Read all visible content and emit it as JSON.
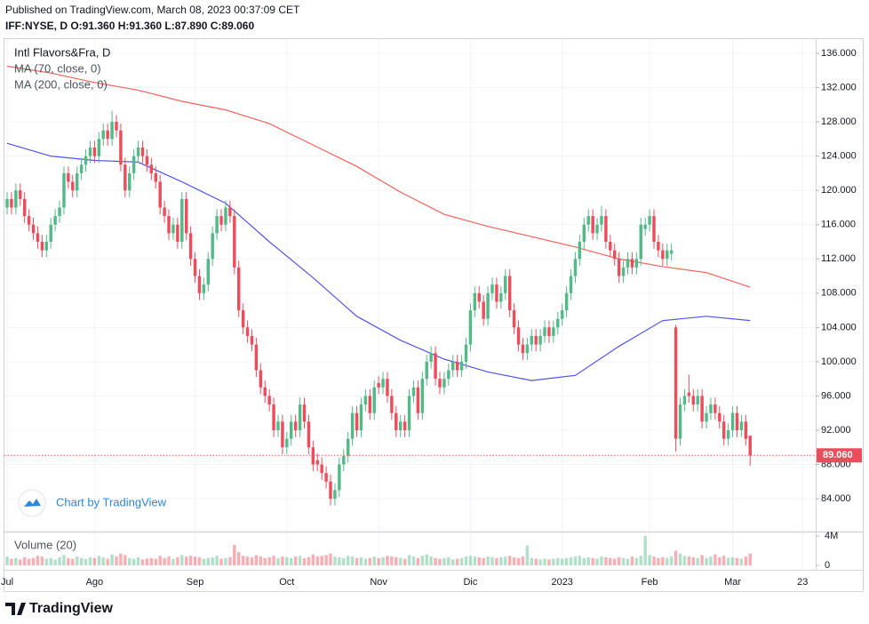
{
  "header": {
    "published": "Published on TradingView.com, March 08, 2023 00:37:09 CET",
    "quote": "IFF:NYSE, D O:91.360 H:91.360 L:87.890 C:89.060"
  },
  "watermark": "Chart by TradingView",
  "footer": {
    "brand": "TradingView"
  },
  "chart_data": {
    "type": "candlestick",
    "title": "Intl Flavors&Fra, D",
    "up_color": "#53b987",
    "down_color": "#eb4d5c",
    "xlim": [
      -1.63,
      185
    ],
    "xticks": [
      {
        "value": 0,
        "label": "Jul"
      },
      {
        "value": 20,
        "label": "Ago"
      },
      {
        "value": 43,
        "label": "Sep"
      },
      {
        "value": 64,
        "label": "Oct"
      },
      {
        "value": 85,
        "label": "Nov"
      },
      {
        "value": 106,
        "label": "Dic"
      },
      {
        "value": 127,
        "label": "2023"
      },
      {
        "value": 147,
        "label": "Feb"
      },
      {
        "value": 166,
        "label": "Mar"
      },
      {
        "value": 182,
        "label": "23"
      }
    ],
    "ylim": [
      80.27,
      137.56
    ],
    "yticks": [
      {
        "value": 84,
        "label": "84.000"
      },
      {
        "value": 88,
        "label": "88.000"
      },
      {
        "value": 92,
        "label": "92.000"
      },
      {
        "value": 96,
        "label": "96.000"
      },
      {
        "value": 100,
        "label": "100.000"
      },
      {
        "value": 104,
        "label": "104.000"
      },
      {
        "value": 108,
        "label": "108.000"
      },
      {
        "value": 112,
        "label": "112.000"
      },
      {
        "value": 116,
        "label": "116.000"
      },
      {
        "value": 120,
        "label": "120.000"
      },
      {
        "value": 124,
        "label": "124.000"
      },
      {
        "value": 128,
        "label": "128.000"
      },
      {
        "value": 132,
        "label": "132.000"
      },
      {
        "value": 136,
        "label": "136.000"
      }
    ],
    "grid": true,
    "last_price": {
      "value": 89.06,
      "label": "89.060",
      "color": "#eb4d5c"
    },
    "ohlc": [
      [
        118,
        119.8,
        117.2,
        119
      ],
      [
        119,
        119.8,
        117.2,
        118
      ],
      [
        118,
        120.8,
        117.2,
        120
      ],
      [
        120,
        120.8,
        118.2,
        119
      ],
      [
        119,
        119.8,
        116.2,
        117
      ],
      [
        117,
        117.8,
        115.2,
        116
      ],
      [
        116,
        116.8,
        114.2,
        115
      ],
      [
        115,
        115.8,
        113.2,
        114
      ],
      [
        114,
        114.8,
        112.2,
        113
      ],
      [
        113,
        114.8,
        112.2,
        114
      ],
      [
        114,
        116.8,
        113.2,
        116
      ],
      [
        116,
        117.8,
        115.2,
        117
      ],
      [
        117,
        118.8,
        116.2,
        118
      ],
      [
        118,
        122.8,
        117.2,
        122
      ],
      [
        122,
        122.8,
        120.2,
        121
      ],
      [
        121,
        121.8,
        119.2,
        120
      ],
      [
        120,
        122.8,
        119.2,
        122
      ],
      [
        122,
        123.8,
        121.2,
        123
      ],
      [
        123,
        124.8,
        122.2,
        124
      ],
      [
        124,
        125.8,
        123.2,
        125
      ],
      [
        125,
        125.8,
        123.2,
        124
      ],
      [
        124,
        126.8,
        123.2,
        126
      ],
      [
        126,
        127.8,
        125.2,
        127
      ],
      [
        127,
        127.8,
        125.2,
        126
      ],
      [
        126,
        129.3,
        125.2,
        128
      ],
      [
        128,
        128.8,
        126.2,
        127
      ],
      [
        127,
        127.8,
        122.2,
        123
      ],
      [
        123,
        123.8,
        119.2,
        120
      ],
      [
        120,
        122.8,
        119.2,
        122
      ],
      [
        122,
        124.8,
        121.2,
        124
      ],
      [
        124,
        125.8,
        123.2,
        125
      ],
      [
        125,
        125.8,
        123.2,
        124
      ],
      [
        124,
        124.8,
        122.2,
        123
      ],
      [
        123,
        123.8,
        121.2,
        122
      ],
      [
        122,
        122.8,
        120.2,
        121
      ],
      [
        121,
        121.8,
        117.2,
        118
      ],
      [
        118,
        118.8,
        116.2,
        117
      ],
      [
        117,
        117.8,
        114.2,
        115
      ],
      [
        115,
        116.8,
        114.2,
        116
      ],
      [
        116,
        116.8,
        113.2,
        114
      ],
      [
        114,
        119.8,
        113.2,
        119
      ],
      [
        119,
        119.8,
        114.2,
        115
      ],
      [
        115,
        115.8,
        111.2,
        112
      ],
      [
        112,
        112.8,
        109.2,
        110
      ],
      [
        110,
        110.8,
        107.2,
        108
      ],
      [
        108,
        109.8,
        107.2,
        109
      ],
      [
        109,
        112.8,
        108.2,
        112
      ],
      [
        112,
        115.8,
        111.2,
        115
      ],
      [
        115,
        117.8,
        114.2,
        117
      ],
      [
        117,
        117.8,
        115.2,
        116
      ],
      [
        116,
        118.8,
        115.2,
        118
      ],
      [
        118,
        118.8,
        116.2,
        117
      ],
      [
        117,
        117.8,
        110.2,
        111
      ],
      [
        111,
        111.8,
        105.2,
        106
      ],
      [
        106,
        106.8,
        103.2,
        104
      ],
      [
        104,
        104.8,
        102.2,
        103
      ],
      [
        103,
        103.8,
        101.2,
        102
      ],
      [
        102,
        102.8,
        98.2,
        99
      ],
      [
        99,
        99.8,
        96.2,
        97
      ],
      [
        97,
        97.8,
        95.2,
        96
      ],
      [
        96,
        96.8,
        94.2,
        95
      ],
      [
        95,
        95.8,
        91.2,
        92
      ],
      [
        92,
        93.8,
        91.2,
        93
      ],
      [
        93,
        93.8,
        89.2,
        90
      ],
      [
        90,
        91.8,
        89.2,
        91
      ],
      [
        91,
        93.8,
        90.2,
        93
      ],
      [
        93,
        93.8,
        91.2,
        92
      ],
      [
        92,
        95.8,
        91.2,
        95
      ],
      [
        95,
        95.8,
        92.2,
        93
      ],
      [
        93,
        93.8,
        89.2,
        90
      ],
      [
        90,
        90.8,
        87.2,
        88
      ],
      [
        88.5,
        89.3,
        87.2,
        88
      ],
      [
        88,
        88.8,
        86.2,
        87
      ],
      [
        87,
        87.8,
        85.2,
        86
      ],
      [
        86,
        86.8,
        83.2,
        84
      ],
      [
        84,
        85.8,
        83.2,
        85
      ],
      [
        85,
        88.8,
        84.2,
        88
      ],
      [
        88,
        89.8,
        87.2,
        89
      ],
      [
        89,
        91.8,
        88.2,
        91
      ],
      [
        91,
        94.8,
        90.2,
        94
      ],
      [
        94,
        94.8,
        91.2,
        92
      ],
      [
        92,
        95.8,
        91.2,
        95
      ],
      [
        95,
        96.8,
        94.2,
        96
      ],
      [
        96,
        96.8,
        93.2,
        94
      ],
      [
        94,
        97.8,
        93.2,
        97
      ],
      [
        97.5,
        98.3,
        96.2,
        97
      ],
      [
        97,
        98.8,
        96.2,
        98
      ],
      [
        98,
        98.8,
        95.2,
        96
      ],
      [
        96,
        96.8,
        93.2,
        94
      ],
      [
        94,
        94.8,
        91.2,
        92
      ],
      [
        92,
        93.8,
        91.2,
        93
      ],
      [
        93,
        93.8,
        91.2,
        92
      ],
      [
        92,
        96.8,
        91.2,
        96
      ],
      [
        96,
        97.8,
        95.2,
        97
      ],
      [
        97,
        97.8,
        93.2,
        94
      ],
      [
        94,
        98.8,
        93.2,
        98
      ],
      [
        98,
        100.8,
        97.2,
        100
      ],
      [
        100,
        101.8,
        99.2,
        101
      ],
      [
        101,
        101.8,
        97.2,
        98
      ],
      [
        98,
        98.8,
        96.2,
        97
      ],
      [
        97,
        98.8,
        96.2,
        98
      ],
      [
        98,
        99.8,
        97.2,
        99
      ],
      [
        99,
        100.8,
        98.2,
        100
      ],
      [
        100,
        100.8,
        98.2,
        99
      ],
      [
        99,
        100.8,
        98.2,
        100
      ],
      [
        100,
        102.8,
        99.2,
        102
      ],
      [
        102,
        106.8,
        101.2,
        106
      ],
      [
        106,
        108.8,
        105.2,
        108
      ],
      [
        108,
        108.8,
        106.2,
        107
      ],
      [
        107,
        107.8,
        104.2,
        105
      ],
      [
        105,
        108.8,
        104.2,
        108
      ],
      [
        108,
        109.8,
        107.2,
        109
      ],
      [
        109,
        109.8,
        106.2,
        107
      ],
      [
        107,
        108.8,
        106.2,
        108
      ],
      [
        108,
        110.8,
        107.2,
        110
      ],
      [
        110,
        110.8,
        105.2,
        106
      ],
      [
        106,
        106.8,
        103.2,
        104
      ],
      [
        104,
        104.8,
        101.2,
        102
      ],
      [
        102,
        102.8,
        100.2,
        101
      ],
      [
        101,
        102.8,
        100.2,
        102
      ],
      [
        102,
        103.8,
        101.2,
        103
      ],
      [
        103,
        103.8,
        101.2,
        102
      ],
      [
        102,
        103.8,
        101.2,
        103
      ],
      [
        103,
        104.8,
        102.2,
        104
      ],
      [
        104,
        104.8,
        102.2,
        103
      ],
      [
        103,
        104.8,
        102.2,
        104
      ],
      [
        104,
        105.8,
        103.2,
        105
      ],
      [
        105,
        106.8,
        104.2,
        106
      ],
      [
        106,
        108.8,
        105.2,
        108
      ],
      [
        108,
        110.8,
        107.2,
        110
      ],
      [
        110,
        112.8,
        109.2,
        112
      ],
      [
        112,
        114.8,
        111.2,
        114
      ],
      [
        114,
        116.8,
        113.2,
        116
      ],
      [
        116,
        117.8,
        115.2,
        117
      ],
      [
        117,
        117.8,
        114.2,
        115
      ],
      [
        115,
        116.8,
        114.2,
        116
      ],
      [
        116,
        118.2,
        115.2,
        117
      ],
      [
        117,
        117.8,
        113.2,
        114
      ],
      [
        114,
        114.8,
        112.2,
        113
      ],
      [
        113,
        113.8,
        111.2,
        112
      ],
      [
        112,
        112.8,
        109.2,
        110
      ],
      [
        110,
        111.8,
        109.2,
        111
      ],
      [
        111,
        112.8,
        110.2,
        112
      ],
      [
        112,
        112.8,
        110.2,
        111
      ],
      [
        111,
        112.8,
        110.2,
        112
      ],
      [
        112,
        116.8,
        111.2,
        116
      ],
      [
        115.5,
        116.8,
        114.7,
        116
      ],
      [
        116,
        117.8,
        115.2,
        117
      ],
      [
        117,
        117.8,
        113.2,
        114
      ],
      [
        114,
        114.8,
        112.2,
        113
      ],
      [
        113,
        113.8,
        111.2,
        112
      ],
      [
        112,
        113.8,
        111.2,
        113
      ],
      [
        112.6,
        113.8,
        111.8,
        113
      ],
      [
        104,
        104.3,
        89.5,
        91
      ],
      [
        91,
        95.8,
        90.2,
        95
      ],
      [
        95,
        96.8,
        94.2,
        96
      ],
      [
        96.4,
        98.5,
        95.2,
        96
      ],
      [
        96,
        96.8,
        94.2,
        95
      ],
      [
        95,
        96.8,
        94.2,
        96
      ],
      [
        96,
        96.8,
        92.2,
        93
      ],
      [
        93,
        94.8,
        92.2,
        94
      ],
      [
        94,
        95.8,
        93.2,
        95
      ],
      [
        95,
        95.8,
        93.2,
        94
      ],
      [
        94,
        94.8,
        92.2,
        93
      ],
      [
        93,
        93.8,
        90.2,
        91
      ],
      [
        91,
        92.8,
        90.2,
        92
      ],
      [
        92,
        94.8,
        91.2,
        94
      ],
      [
        94,
        94.8,
        91.2,
        92
      ],
      [
        92,
        93.8,
        91.2,
        93
      ],
      [
        93,
        93.8,
        90.2,
        91
      ],
      [
        91.36,
        91.36,
        87.89,
        89.06
      ]
    ],
    "series": [
      {
        "name": "MA (70, close, 0)",
        "color": "#5056e8",
        "x": [
          0,
          10,
          20,
          30,
          40,
          50,
          60,
          70,
          80,
          90,
          100,
          110,
          120,
          130,
          140,
          150,
          160,
          170
        ],
        "values": [
          125.5,
          124.0,
          123.5,
          123.3,
          121.0,
          118.5,
          114.0,
          109.8,
          105.3,
          102.5,
          100.3,
          98.8,
          97.8,
          98.4,
          101.8,
          104.8,
          105.3,
          104.8
        ]
      },
      {
        "name": "MA (200, close, 0)",
        "color": "#f0625a",
        "x": [
          0,
          10,
          20,
          30,
          40,
          50,
          60,
          70,
          80,
          90,
          100,
          110,
          120,
          130,
          140,
          150,
          160,
          170
        ],
        "values": [
          134.5,
          133.7,
          132.6,
          131.7,
          130.4,
          129.4,
          127.8,
          125.3,
          122.8,
          119.8,
          117.2,
          115.8,
          114.6,
          113.4,
          112.0,
          111.1,
          110.4,
          108.7
        ]
      }
    ],
    "volume": {
      "name": "Volume (20)",
      "ylim": [
        -0.48,
        4.6
      ],
      "yticks": [
        0,
        {
          "value": 4,
          "label": "4M"
        }
      ],
      "values": [
        1.2,
        0.9,
        1.0,
        0.8,
        1.1,
        0.9,
        1.0,
        1.3,
        1.2,
        0.9,
        1.0,
        0.8,
        1.1,
        1.4,
        1.0,
        0.9,
        1.2,
        1.0,
        0.9,
        1.1,
        1.0,
        1.3,
        1.1,
        0.9,
        1.5,
        1.2,
        1.6,
        1.4,
        1.0,
        0.9,
        1.1,
        0.8,
        0.9,
        1.0,
        0.9,
        1.3,
        1.0,
        1.2,
        0.9,
        1.1,
        1.4,
        1.2,
        1.3,
        1.2,
        1.1,
        0.9,
        1.0,
        1.1,
        1.3,
        0.9,
        1.0,
        1.1,
        2.8,
        1.8,
        1.3,
        1.2,
        1.1,
        1.4,
        1.2,
        1.0,
        1.1,
        1.3,
        1.0,
        1.2,
        1.1,
        1.0,
        1.2,
        1.3,
        1.0,
        1.1,
        1.5,
        1.2,
        1.3,
        1.4,
        1.6,
        1.2,
        1.1,
        1.0,
        1.3,
        1.2,
        1.0,
        1.1,
        0.9,
        1.0,
        1.2,
        1.0,
        1.1,
        1.3,
        1.2,
        1.1,
        1.0,
        0.9,
        1.4,
        1.2,
        1.0,
        1.3,
        1.5,
        1.2,
        1.0,
        0.9,
        1.0,
        1.1,
        0.8,
        0.9,
        1.0,
        1.2,
        1.3,
        1.2,
        1.1,
        1.0,
        1.2,
        1.1,
        1.0,
        1.1,
        1.2,
        1.3,
        1.1,
        1.0,
        1.2,
        2.7,
        1.0,
        0.9,
        0.8,
        0.9,
        0.8,
        0.9,
        1.0,
        0.9,
        1.0,
        1.1,
        1.2,
        1.3,
        1.0,
        1.1,
        1.0,
        0.9,
        1.2,
        1.1,
        1.0,
        0.9,
        1.1,
        1.0,
        0.9,
        1.2,
        1.0,
        1.3,
        4.0,
        1.4,
        1.2,
        1.0,
        1.1,
        1.0,
        1.2,
        2.0,
        1.6,
        1.3,
        1.2,
        1.1,
        1.0,
        1.4,
        1.0,
        1.2,
        1.5,
        1.1,
        1.3,
        1.0,
        1.1,
        1.0,
        0.9,
        1.2,
        1.6
      ]
    }
  }
}
